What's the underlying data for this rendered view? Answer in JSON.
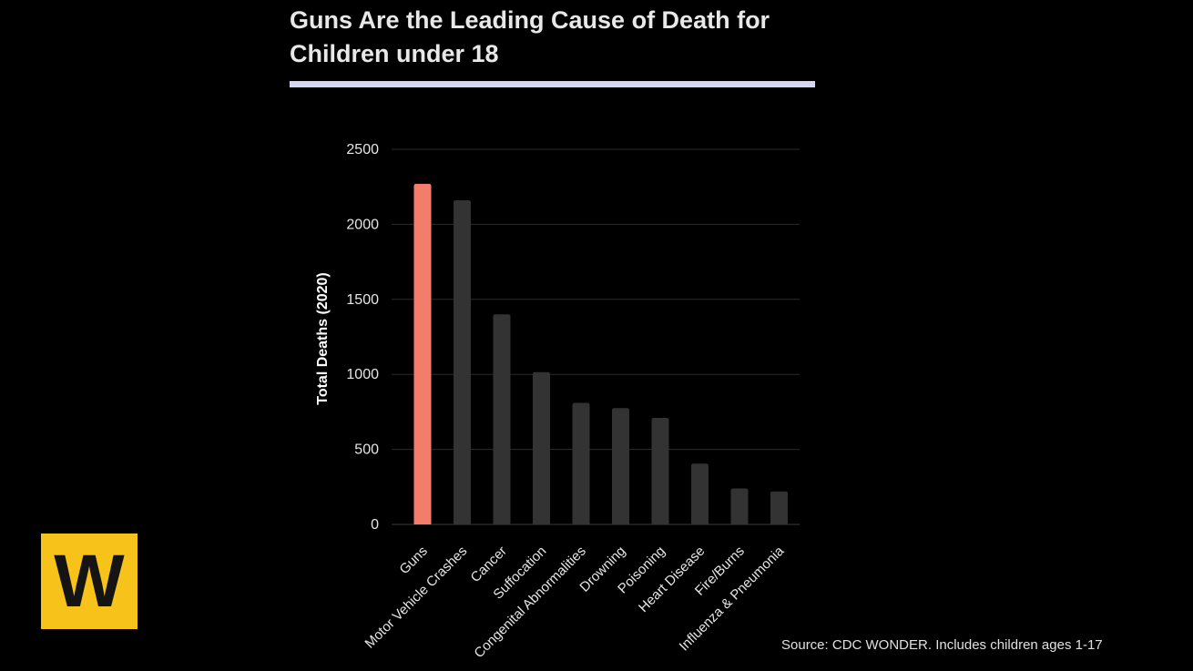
{
  "title": "Guns Are the Leading Cause of Death for Children under 18",
  "source": "Source: CDC WONDER. Includes children ages 1-17",
  "logo": {
    "letter": "W",
    "color": "#f7c21a"
  },
  "colors": {
    "background": "#000000",
    "highlight_bar": "#f47c6a",
    "bar": "#333333",
    "gridline": "#2b2b2b",
    "title_rule": "#d5d8f5"
  },
  "chart_data": {
    "type": "bar",
    "title": "Guns Are the Leading Cause of Death for Children under 18",
    "ylabel": "Total Deaths (2020)",
    "xlabel": "",
    "ylim": [
      0,
      2500
    ],
    "yticks": [
      0,
      500,
      1000,
      1500,
      2000,
      2500
    ],
    "grid": true,
    "categories": [
      "Guns",
      "Motor Vehicle Crashes",
      "Cancer",
      "Suffocation",
      "Congenital Abnormalities",
      "Drowning",
      "Poisoning",
      "Heart Disease",
      "Fire/Burns",
      "Influenza & Pneumonia"
    ],
    "values": [
      2270,
      2160,
      1400,
      1015,
      810,
      775,
      710,
      405,
      240,
      220
    ],
    "highlight_index": 0
  }
}
